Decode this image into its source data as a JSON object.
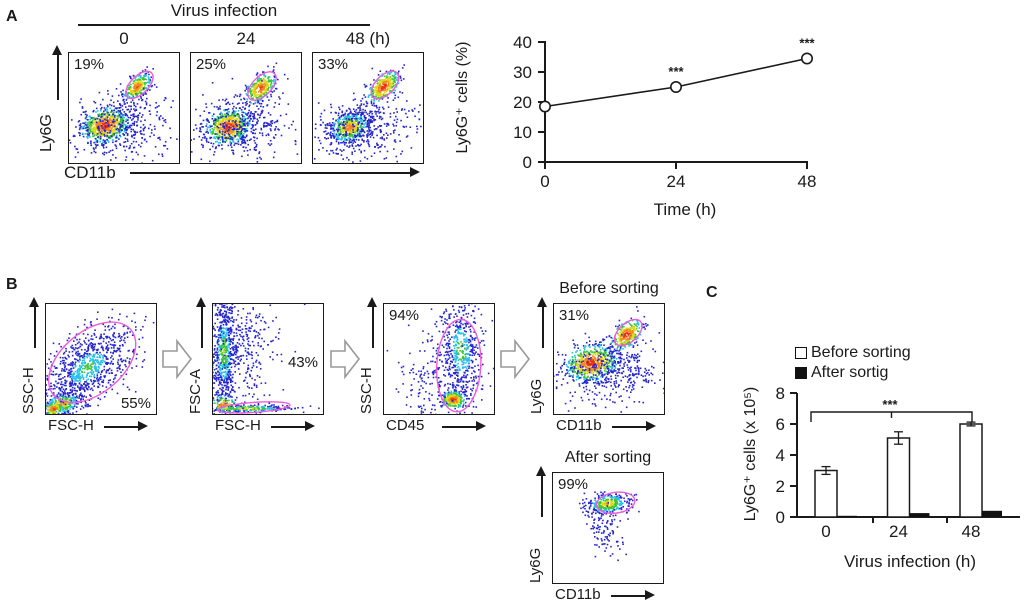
{
  "figure": {
    "panel_a": {
      "label": "A",
      "header": "Virus infection",
      "timepoints": [
        "0",
        "24",
        "48 (h)"
      ]
    },
    "panel_b": {
      "label": "B"
    },
    "panel_c": {
      "label": "C"
    }
  },
  "colors": {
    "axis": "#1a1a1a",
    "gate": "#ef5cd8",
    "dot_palette_hot_to_cold": [
      "#e8350f",
      "#f6861f",
      "#dcd918",
      "#3cc437",
      "#26c1e9",
      "#2525cd"
    ]
  },
  "chart_data": [
    {
      "id": "panel_a_line",
      "type": "line",
      "x": [
        0,
        24,
        48
      ],
      "y": [
        18.5,
        25,
        34.5
      ],
      "yerr": [
        1.5,
        1.3,
        1.3
      ],
      "point_annotations": [
        "",
        "***",
        "***"
      ],
      "xlabel": "Time (h)",
      "ylabel": "Ly6G⁺ cells (%)",
      "xlim": [
        0,
        48
      ],
      "ylim": [
        0,
        40
      ],
      "xticks": [
        0,
        24,
        48
      ],
      "yticks": [
        0,
        10,
        20,
        30,
        40
      ],
      "marker": "open-circle",
      "grid": false
    },
    {
      "id": "panel_c_bar",
      "type": "bar",
      "categories": [
        "0",
        "24",
        "48"
      ],
      "series": [
        {
          "name": "Before sorting",
          "fill": "#ffffff",
          "values": [
            3.0,
            5.1,
            6.0
          ],
          "errors": [
            0.25,
            0.4,
            0.12
          ]
        },
        {
          "name": "After sortig",
          "fill": "#111111",
          "values": [
            0.08,
            0.25,
            0.4
          ],
          "errors": [
            0,
            0,
            0
          ]
        }
      ],
      "xlabel": "Virus infection (h)",
      "ylabel": "Ly6G⁺ cells (x 10⁵)",
      "ylim": [
        0,
        8
      ],
      "yticks": [
        0,
        2,
        4,
        6,
        8
      ],
      "significance": {
        "label": "***",
        "from_category": "0",
        "to_category": "48",
        "y_value": 6.8
      },
      "legend_position": "top",
      "grid": false
    },
    {
      "id": "flow_plots",
      "type": "scatter",
      "description": "Flow cytometry pseudocolor dot plots with gates",
      "plots": [
        {
          "id": "fp-a0",
          "panel": "A",
          "condition": "0 h",
          "xlabel": "CD11b",
          "ylabel": "Ly6G",
          "gate_pct": "19%"
        },
        {
          "id": "fp-a24",
          "panel": "A",
          "condition": "24 h",
          "xlabel": "CD11b",
          "ylabel": "Ly6G",
          "gate_pct": "25%"
        },
        {
          "id": "fp-a48",
          "panel": "A",
          "condition": "48 h",
          "xlabel": "CD11b",
          "ylabel": "Ly6G",
          "gate_pct": "33%"
        },
        {
          "id": "fp-b1",
          "panel": "B",
          "xlabel": "FSC-H",
          "ylabel": "SSC-H",
          "gate_pct": "55%"
        },
        {
          "id": "fp-b2",
          "panel": "B",
          "xlabel": "FSC-H",
          "ylabel": "FSC-A",
          "gate_pct": "43%"
        },
        {
          "id": "fp-b3",
          "panel": "B",
          "xlabel": "CD45",
          "ylabel": "SSC-H",
          "gate_pct": "94%"
        },
        {
          "id": "fp-b4",
          "panel": "B",
          "title": "Before sorting",
          "xlabel": "CD11b",
          "ylabel": "Ly6G",
          "gate_pct": "31%"
        },
        {
          "id": "fp-b5",
          "panel": "B",
          "title": "After sorting",
          "xlabel": "CD11b",
          "ylabel": "Ly6G",
          "gate_pct": "99%"
        }
      ]
    }
  ]
}
